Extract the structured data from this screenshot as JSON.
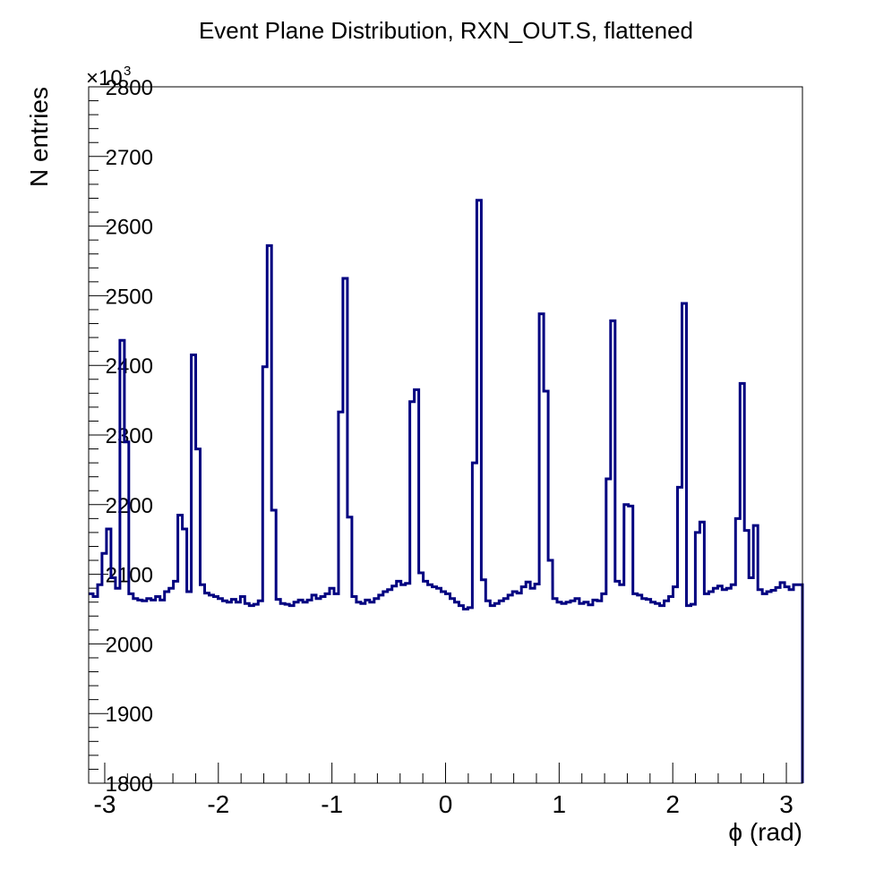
{
  "chart_data": {
    "type": "line",
    "title": "Event Plane Distribution, RXN_OUT.S, flattened",
    "xlabel": "ϕ (rad)",
    "ylabel": "N entries",
    "y_multiplier": "×10",
    "y_multiplier_exp": "3",
    "xlim": [
      -3.1416,
      3.1416
    ],
    "ylim": [
      1800,
      2800
    ],
    "x_ticks": [
      -3,
      -2,
      -1,
      0,
      1,
      2,
      3
    ],
    "x_tick_labels": [
      "-3",
      "-2",
      "-1",
      "0",
      "1",
      "2",
      "3"
    ],
    "y_ticks": [
      1800,
      1900,
      2000,
      2100,
      2200,
      2300,
      2400,
      2500,
      2600,
      2700,
      2800
    ],
    "y_tick_labels": [
      "1800",
      "1900",
      "2000",
      "2100",
      "2200",
      "2300",
      "2400",
      "2500",
      "2600",
      "2700",
      "2800"
    ],
    "grid": false,
    "line_color": "#000080",
    "x": [
      -3.1416,
      -3.1023,
      -3.0631,
      -3.0238,
      -2.9845,
      -2.9452,
      -2.906,
      -2.8667,
      -2.8274,
      -2.7882,
      -2.7489,
      -2.7096,
      -2.6704,
      -2.6311,
      -2.5918,
      -2.5525,
      -2.5133,
      -2.474,
      -2.4347,
      -2.3955,
      -2.3562,
      -2.3169,
      -2.2777,
      -2.2384,
      -2.1991,
      -2.1598,
      -2.1206,
      -2.0813,
      -2.042,
      -2.0028,
      -1.9635,
      -1.9242,
      -1.885,
      -1.8457,
      -1.8064,
      -1.7671,
      -1.7279,
      -1.6886,
      -1.6493,
      -1.6101,
      -1.5708,
      -1.5315,
      -1.4923,
      -1.453,
      -1.4137,
      -1.3744,
      -1.3352,
      -1.2959,
      -1.2566,
      -1.2174,
      -1.1781,
      -1.1388,
      -1.0996,
      -1.0603,
      -1.021,
      -0.9817,
      -0.9425,
      -0.9032,
      -0.8639,
      -0.8247,
      -0.7854,
      -0.7461,
      -0.7069,
      -0.6676,
      -0.6283,
      -0.589,
      -0.5498,
      -0.5105,
      -0.4712,
      -0.432,
      -0.3927,
      -0.3534,
      -0.3142,
      -0.2749,
      -0.2356,
      -0.1963,
      -0.1571,
      -0.1178,
      -0.0785,
      -0.0393,
      0.0,
      0.0393,
      0.0785,
      0.1178,
      0.1571,
      0.1963,
      0.2356,
      0.2749,
      0.3142,
      0.3534,
      0.3927,
      0.432,
      0.4712,
      0.5105,
      0.5498,
      0.589,
      0.6283,
      0.6676,
      0.7069,
      0.7461,
      0.7854,
      0.8247,
      0.8639,
      0.9032,
      0.9425,
      0.9817,
      1.021,
      1.0603,
      1.0996,
      1.1388,
      1.1781,
      1.2174,
      1.2566,
      1.2959,
      1.3352,
      1.3744,
      1.4137,
      1.453,
      1.4923,
      1.5315,
      1.5708,
      1.6101,
      1.6493,
      1.6886,
      1.7279,
      1.7671,
      1.8064,
      1.8457,
      1.885,
      1.9242,
      1.9635,
      2.0028,
      2.042,
      2.0813,
      2.1206,
      2.1598,
      2.1991,
      2.2384,
      2.2777,
      2.3169,
      2.3562,
      2.3955,
      2.4347,
      2.474,
      2.5133,
      2.5525,
      2.5918,
      2.6311,
      2.6704,
      2.7096,
      2.7489,
      2.7882,
      2.8274,
      2.8667,
      2.906,
      2.9452,
      2.9845,
      3.0238,
      3.0631,
      3.1023
    ],
    "y": [
      2072,
      2068,
      2085,
      2130,
      2165,
      2095,
      2080,
      2436,
      2290,
      2072,
      2065,
      2063,
      2062,
      2065,
      2063,
      2068,
      2063,
      2075,
      2080,
      2090,
      2185,
      2165,
      2075,
      2415,
      2280,
      2085,
      2073,
      2070,
      2068,
      2065,
      2062,
      2060,
      2064,
      2060,
      2068,
      2058,
      2055,
      2057,
      2062,
      2398,
      2572,
      2192,
      2064,
      2058,
      2057,
      2055,
      2060,
      2063,
      2060,
      2063,
      2070,
      2065,
      2068,
      2072,
      2080,
      2072,
      2333,
      2525,
      2182,
      2068,
      2060,
      2058,
      2063,
      2060,
      2065,
      2070,
      2075,
      2078,
      2083,
      2090,
      2085,
      2087,
      2348,
      2365,
      2102,
      2090,
      2085,
      2082,
      2080,
      2075,
      2072,
      2065,
      2060,
      2055,
      2050,
      2052,
      2260,
      2637,
      2092,
      2062,
      2055,
      2058,
      2062,
      2065,
      2070,
      2075,
      2073,
      2082,
      2089,
      2080,
      2086,
      2474,
      2363,
      2120,
      2065,
      2060,
      2058,
      2060,
      2062,
      2065,
      2058,
      2060,
      2056,
      2063,
      2062,
      2072,
      2237,
      2464,
      2090,
      2085,
      2200,
      2198,
      2072,
      2070,
      2065,
      2064,
      2060,
      2058,
      2055,
      2062,
      2068,
      2082,
      2225,
      2489,
      2055,
      2057,
      2160,
      2175,
      2072,
      2075,
      2080,
      2083,
      2078,
      2080,
      2085,
      2180,
      2374,
      2163,
      2095,
      2170,
      2078,
      2072,
      2075,
      2077,
      2081,
      2088,
      2082,
      2078,
      2085,
      2085
    ]
  }
}
